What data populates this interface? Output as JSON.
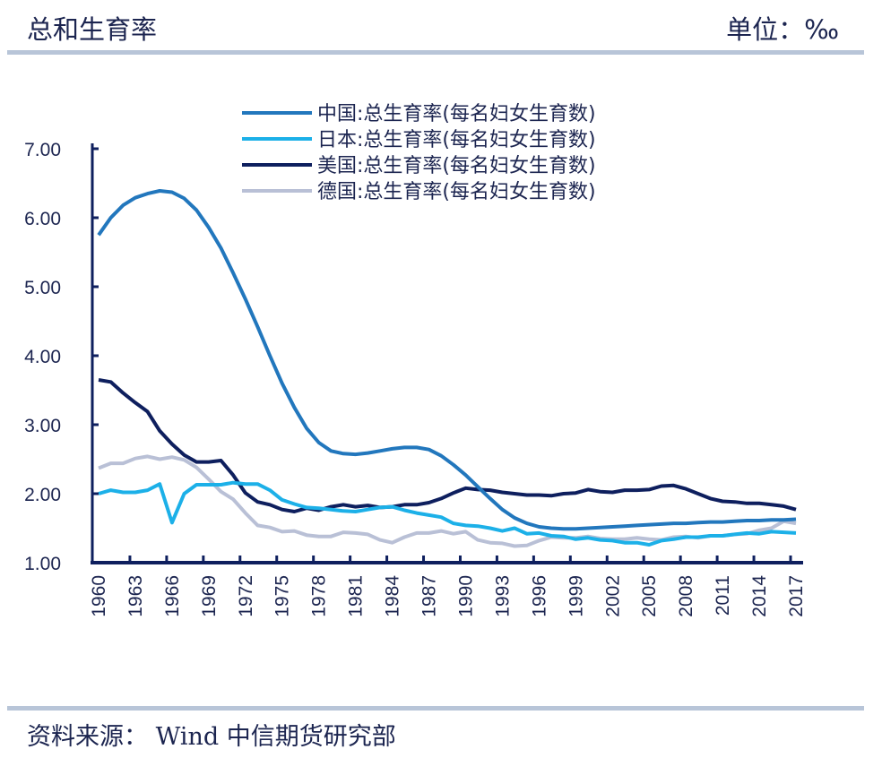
{
  "header": {
    "title": "总和生育率",
    "unit": "单位：‰"
  },
  "footer": {
    "source": "资料来源： Wind  中信期货研究部"
  },
  "chart_data": {
    "type": "line",
    "title": "",
    "xlabel": "",
    "ylabel": "",
    "ylim": [
      1.0,
      7.0
    ],
    "yticks": [
      "1.00",
      "2.00",
      "3.00",
      "4.00",
      "5.00",
      "6.00",
      "7.00"
    ],
    "xticks": [
      "1960",
      "1963",
      "1966",
      "1969",
      "1972",
      "1975",
      "1978",
      "1981",
      "1984",
      "1987",
      "1990",
      "1993",
      "1996",
      "1999",
      "2002",
      "2005",
      "2008",
      "2011",
      "2014",
      "2017"
    ],
    "x_start": 1960,
    "x_end": 2017,
    "grid": false,
    "legend_position": "top",
    "series": [
      {
        "name": "中国:总生育率(每名妇女生育数)",
        "color": "#2277bd",
        "values": [
          5.75,
          6.0,
          6.18,
          6.29,
          6.35,
          6.39,
          6.37,
          6.28,
          6.11,
          5.86,
          5.56,
          5.2,
          4.82,
          4.42,
          4.0,
          3.6,
          3.25,
          2.95,
          2.74,
          2.62,
          2.58,
          2.57,
          2.59,
          2.62,
          2.65,
          2.67,
          2.67,
          2.64,
          2.55,
          2.42,
          2.27,
          2.1,
          1.93,
          1.77,
          1.65,
          1.57,
          1.52,
          1.5,
          1.49,
          1.49,
          1.5,
          1.51,
          1.52,
          1.53,
          1.54,
          1.55,
          1.56,
          1.57,
          1.57,
          1.58,
          1.59,
          1.59,
          1.6,
          1.61,
          1.61,
          1.62,
          1.62,
          1.63
        ]
      },
      {
        "name": "日本:总生育率(每名妇女生育数)",
        "color": "#1cb0e8",
        "values": [
          2.0,
          2.05,
          2.02,
          2.02,
          2.05,
          2.14,
          1.58,
          2.0,
          2.13,
          2.13,
          2.13,
          2.16,
          2.14,
          2.14,
          2.05,
          1.91,
          1.85,
          1.8,
          1.79,
          1.77,
          1.75,
          1.74,
          1.77,
          1.8,
          1.81,
          1.76,
          1.72,
          1.69,
          1.66,
          1.57,
          1.54,
          1.53,
          1.5,
          1.46,
          1.5,
          1.42,
          1.43,
          1.39,
          1.38,
          1.34,
          1.36,
          1.33,
          1.32,
          1.29,
          1.29,
          1.26,
          1.32,
          1.34,
          1.37,
          1.37,
          1.39,
          1.39,
          1.41,
          1.43,
          1.42,
          1.45,
          1.44,
          1.43
        ]
      },
      {
        "name": "美国:总生育率(每名妇女生育数)",
        "color": "#0e1f5e",
        "values": [
          3.65,
          3.62,
          3.46,
          3.32,
          3.19,
          2.91,
          2.72,
          2.56,
          2.46,
          2.46,
          2.48,
          2.27,
          2.01,
          1.88,
          1.84,
          1.77,
          1.74,
          1.79,
          1.76,
          1.81,
          1.84,
          1.81,
          1.83,
          1.8,
          1.81,
          1.84,
          1.84,
          1.87,
          1.93,
          2.01,
          2.08,
          2.06,
          2.05,
          2.02,
          2.0,
          1.98,
          1.98,
          1.97,
          2.0,
          2.01,
          2.06,
          2.03,
          2.02,
          2.05,
          2.05,
          2.06,
          2.11,
          2.12,
          2.07,
          2.0,
          1.93,
          1.89,
          1.88,
          1.86,
          1.86,
          1.84,
          1.82,
          1.77
        ]
      },
      {
        "name": "德国:总生育率(每名妇女生育数)",
        "color": "#b9c0d6",
        "values": [
          2.37,
          2.44,
          2.44,
          2.51,
          2.54,
          2.5,
          2.53,
          2.49,
          2.38,
          2.21,
          2.03,
          1.92,
          1.72,
          1.54,
          1.51,
          1.45,
          1.46,
          1.4,
          1.38,
          1.38,
          1.44,
          1.43,
          1.41,
          1.33,
          1.29,
          1.37,
          1.43,
          1.43,
          1.46,
          1.42,
          1.45,
          1.33,
          1.29,
          1.28,
          1.24,
          1.25,
          1.32,
          1.37,
          1.36,
          1.36,
          1.38,
          1.35,
          1.34,
          1.34,
          1.36,
          1.34,
          1.33,
          1.37,
          1.38,
          1.36,
          1.39,
          1.39,
          1.41,
          1.42,
          1.47,
          1.5,
          1.6,
          1.57
        ]
      }
    ]
  }
}
